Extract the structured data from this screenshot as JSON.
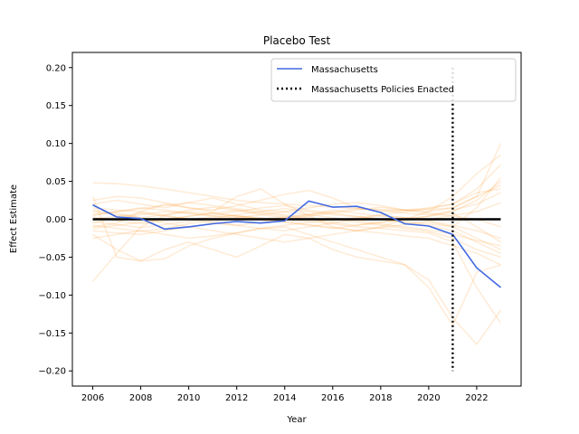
{
  "chart_data": {
    "type": "line",
    "title": "Placebo Test",
    "xlabel": "Year",
    "ylabel": "Effect Estimate",
    "xlim": [
      2005.15,
      2023.85
    ],
    "ylim": [
      -0.22,
      0.22
    ],
    "xticks": [
      2006,
      2008,
      2010,
      2012,
      2014,
      2016,
      2018,
      2020,
      2022
    ],
    "yticks": [
      -0.2,
      -0.15,
      -0.1,
      -0.05,
      0.0,
      0.05,
      0.1,
      0.15,
      0.2
    ],
    "ytick_labels": [
      "−0.20",
      "−0.15",
      "−0.10",
      "−0.05",
      "0.00",
      "0.05",
      "0.10",
      "0.15",
      "0.20"
    ],
    "x": [
      2006,
      2007,
      2008,
      2009,
      2010,
      2011,
      2012,
      2013,
      2014,
      2015,
      2016,
      2017,
      2018,
      2019,
      2020,
      2021,
      2022,
      2023
    ],
    "series": [
      {
        "name": "Massachusetts",
        "color": "#4169e1",
        "values": [
          0.019,
          0.003,
          0.001,
          -0.013,
          -0.01,
          -0.006,
          -0.003,
          -0.005,
          -0.002,
          0.024,
          0.016,
          0.017,
          0.009,
          -0.006,
          -0.009,
          -0.02,
          -0.064,
          -0.09
        ]
      }
    ],
    "zero_line": {
      "y": 0.0,
      "color": "#000000"
    },
    "policy_line": {
      "name": "Massachusetts Policies Enacted",
      "x": 2021,
      "y_range": [
        -0.2,
        0.2
      ],
      "style": "dotted",
      "color": "#000000"
    },
    "placebo_series": {
      "color": "#ff9933",
      "opacity": 0.2,
      "lines": [
        [
          0.048,
          0.047,
          0.044,
          0.04,
          0.035,
          0.03,
          0.025,
          0.022,
          0.02,
          0.018,
          0.016,
          0.014,
          0.013,
          0.012,
          0.013,
          0.015,
          0.03,
          0.1
        ],
        [
          -0.082,
          -0.045,
          -0.01,
          0.005,
          0.01,
          0.008,
          0.004,
          0.002,
          0.0,
          -0.003,
          -0.006,
          -0.01,
          -0.012,
          -0.015,
          -0.018,
          -0.03,
          -0.09,
          -0.137
        ],
        [
          0.03,
          -0.05,
          -0.055,
          -0.04,
          -0.03,
          -0.04,
          -0.05,
          -0.035,
          -0.02,
          -0.025,
          -0.04,
          -0.05,
          -0.055,
          -0.06,
          -0.08,
          -0.13,
          -0.165,
          -0.12
        ],
        [
          -0.02,
          -0.04,
          -0.055,
          -0.052,
          -0.035,
          -0.025,
          -0.018,
          -0.012,
          -0.01,
          -0.02,
          -0.03,
          -0.04,
          -0.05,
          -0.06,
          -0.09,
          -0.14,
          -0.07,
          -0.06
        ],
        [
          0.025,
          0.03,
          0.028,
          0.022,
          0.015,
          0.012,
          0.018,
          0.025,
          0.033,
          0.038,
          0.028,
          0.015,
          0.01,
          0.012,
          0.015,
          0.02,
          0.04,
          0.072
        ],
        [
          -0.01,
          -0.005,
          0.01,
          0.02,
          0.015,
          0.01,
          0.03,
          0.04,
          0.02,
          0.005,
          -0.01,
          -0.015,
          -0.01,
          0.0,
          0.01,
          0.03,
          0.06,
          0.085
        ],
        [
          0.012,
          0.008,
          0.002,
          -0.005,
          -0.01,
          -0.015,
          -0.02,
          -0.025,
          -0.03,
          -0.025,
          -0.02,
          -0.015,
          -0.018,
          -0.022,
          -0.025,
          -0.035,
          -0.045,
          -0.06
        ],
        [
          -0.005,
          0.002,
          0.006,
          0.01,
          0.008,
          0.004,
          0.002,
          0.0,
          0.003,
          0.006,
          0.01,
          0.014,
          0.012,
          0.008,
          0.006,
          0.01,
          0.025,
          0.05
        ],
        [
          0.005,
          0.01,
          0.015,
          0.012,
          0.008,
          0.005,
          0.01,
          0.015,
          0.018,
          0.012,
          0.008,
          0.004,
          0.0,
          -0.004,
          -0.008,
          -0.015,
          -0.03,
          -0.045
        ],
        [
          -0.015,
          -0.018,
          -0.02,
          -0.015,
          -0.01,
          -0.005,
          -0.008,
          -0.012,
          -0.015,
          -0.01,
          -0.005,
          0.0,
          0.005,
          0.002,
          -0.002,
          -0.008,
          -0.015,
          -0.025
        ],
        [
          0.02,
          0.025,
          0.02,
          0.015,
          0.022,
          0.028,
          0.02,
          0.012,
          0.01,
          0.015,
          0.02,
          0.022,
          0.018,
          0.012,
          0.01,
          0.015,
          0.03,
          0.045
        ],
        [
          -0.025,
          -0.02,
          -0.015,
          -0.02,
          -0.025,
          -0.022,
          -0.018,
          -0.012,
          -0.008,
          -0.004,
          0.0,
          -0.004,
          -0.008,
          -0.012,
          -0.016,
          -0.025,
          -0.04,
          -0.05
        ],
        [
          0.003,
          -0.002,
          -0.006,
          -0.002,
          0.004,
          0.008,
          0.012,
          0.008,
          0.004,
          0.0,
          -0.004,
          -0.008,
          -0.004,
          0.0,
          0.004,
          0.012,
          0.02,
          0.035
        ],
        [
          0.01,
          0.006,
          0.002,
          0.006,
          0.012,
          0.016,
          0.012,
          0.006,
          0.002,
          0.006,
          0.012,
          0.008,
          0.004,
          0.002,
          0.0,
          0.005,
          0.01,
          0.022
        ],
        [
          -0.008,
          -0.012,
          -0.016,
          -0.012,
          -0.006,
          -0.002,
          0.002,
          0.006,
          0.01,
          0.006,
          0.002,
          -0.002,
          -0.006,
          -0.01,
          -0.014,
          -0.02,
          -0.028,
          -0.035
        ],
        [
          0.0,
          0.004,
          0.008,
          0.004,
          0.0,
          -0.004,
          -0.008,
          -0.004,
          0.0,
          0.004,
          0.008,
          0.012,
          0.016,
          0.012,
          0.008,
          0.004,
          0.0,
          -0.01
        ],
        [
          0.015,
          0.012,
          0.01,
          0.005,
          0.0,
          0.003,
          0.006,
          0.01,
          0.014,
          0.01,
          0.006,
          0.003,
          0.0,
          -0.003,
          -0.006,
          -0.01,
          0.015,
          0.055
        ],
        [
          -0.012,
          -0.008,
          -0.004,
          0.0,
          0.004,
          0.008,
          0.004,
          0.0,
          -0.004,
          -0.008,
          -0.012,
          -0.008,
          -0.004,
          0.0,
          0.004,
          0.008,
          -0.01,
          -0.03
        ],
        [
          0.006,
          0.01,
          0.014,
          0.018,
          0.022,
          0.018,
          0.014,
          0.01,
          0.006,
          0.002,
          -0.002,
          0.002,
          0.006,
          0.01,
          0.014,
          0.02,
          0.035,
          0.04
        ],
        [
          -0.003,
          -0.007,
          -0.011,
          -0.007,
          -0.003,
          0.001,
          0.005,
          0.001,
          -0.003,
          -0.007,
          -0.011,
          -0.015,
          -0.011,
          -0.007,
          -0.003,
          -0.01,
          -0.025,
          -0.04
        ]
      ]
    },
    "legend": {
      "position": "upper right",
      "entries": [
        {
          "label": "Massachusetts",
          "style": "solid",
          "color": "#4169e1"
        },
        {
          "label": "Massachusetts Policies Enacted",
          "style": "dotted",
          "color": "#000000"
        }
      ]
    },
    "grid": false
  }
}
